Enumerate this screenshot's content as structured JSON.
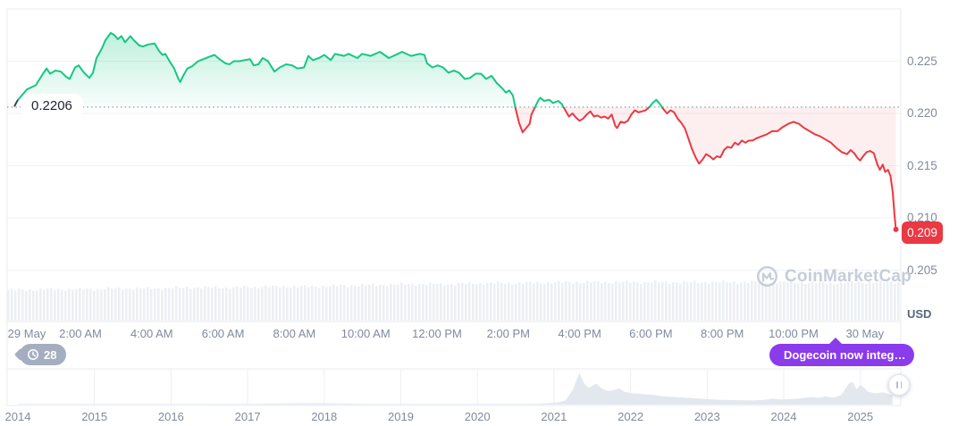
{
  "colors": {
    "up": "#16C784",
    "down": "#EA3943",
    "axis_text": "#808A9D",
    "grid": "#F0F2F6",
    "border": "#E8EBF1",
    "volume_bar": "#ECEFF3",
    "mini_fill": "#E3E8EF",
    "purple": "#8A3BEC",
    "history_badge_gray": "#A5AEC0",
    "watermark_gray": "#C5CDD9",
    "price_badge_red": "#EA3943"
  },
  "chart": {
    "baseline_label": "0.2206",
    "current_price_label": "0.209",
    "y_axis_unit": "USD",
    "y_axis_labels": [
      "0.225",
      "0.220",
      "0.215",
      "0.210",
      "0.205"
    ],
    "x_axis_labels": [
      "29 May",
      "2:00 AM",
      "4:00 AM",
      "6:00 AM",
      "8:00 AM",
      "10:00 AM",
      "12:00 PM",
      "2:00 PM",
      "4:00 PM",
      "6:00 PM",
      "8:00 PM",
      "10:00 PM",
      "30 May"
    ]
  },
  "history_badge": {
    "count": "28",
    "icon": "history-clock-icon"
  },
  "cta": {
    "label": "Dogecoin now integ…",
    "icon": "lightning-bolt-icon"
  },
  "watermark": {
    "text": "CoinMarketCap",
    "icon": "coinmarketcap-logo"
  },
  "timeline": {
    "year_labels": [
      "2014",
      "2015",
      "2016",
      "2017",
      "2018",
      "2019",
      "2020",
      "2021",
      "2022",
      "2023",
      "2024",
      "2025"
    ]
  },
  "chart_data": [
    {
      "type": "area",
      "title": "DOGE/USD intraday price, 29-30 May",
      "ylabel": "USD",
      "baseline": 0.2206,
      "current_price": 0.209,
      "y_ticks": [
        0.225,
        0.22,
        0.215,
        0.21,
        0.205
      ],
      "ylim": [
        0.2,
        0.23
      ],
      "x_ticks_hours": [
        0,
        2,
        4,
        6,
        8,
        10,
        12,
        14,
        16,
        18,
        20,
        22,
        24
      ],
      "grid": true,
      "series": [
        {
          "name": "price",
          "points": [
            [
              0.25,
              0.2213
            ],
            [
              0.5,
              0.2223
            ],
            [
              0.75,
              0.2227
            ],
            [
              0.95,
              0.2238
            ],
            [
              1.05,
              0.2243
            ],
            [
              1.15,
              0.2238
            ],
            [
              1.3,
              0.2241
            ],
            [
              1.45,
              0.224
            ],
            [
              1.6,
              0.2235
            ],
            [
              1.7,
              0.2233
            ],
            [
              1.85,
              0.2244
            ],
            [
              1.95,
              0.2246
            ],
            [
              2.1,
              0.2239
            ],
            [
              2.25,
              0.2234
            ],
            [
              2.35,
              0.2239
            ],
            [
              2.45,
              0.2253
            ],
            [
              2.6,
              0.2262
            ],
            [
              2.7,
              0.227
            ],
            [
              2.85,
              0.2277
            ],
            [
              2.95,
              0.2275
            ],
            [
              3.05,
              0.2271
            ],
            [
              3.15,
              0.2274
            ],
            [
              3.25,
              0.2268
            ],
            [
              3.4,
              0.2274
            ],
            [
              3.5,
              0.227
            ],
            [
              3.65,
              0.2265
            ],
            [
              3.75,
              0.2264
            ],
            [
              3.9,
              0.2266
            ],
            [
              4.08,
              0.2267
            ],
            [
              4.2,
              0.226
            ],
            [
              4.3,
              0.2256
            ],
            [
              4.38,
              0.2257
            ],
            [
              4.5,
              0.225
            ],
            [
              4.63,
              0.2243
            ],
            [
              4.75,
              0.2233
            ],
            [
              4.8,
              0.223
            ],
            [
              4.88,
              0.2236
            ],
            [
              5.0,
              0.2243
            ],
            [
              5.13,
              0.2245
            ],
            [
              5.3,
              0.225
            ],
            [
              5.45,
              0.2252
            ],
            [
              5.6,
              0.2254
            ],
            [
              5.76,
              0.2256
            ],
            [
              5.9,
              0.2252
            ],
            [
              6.06,
              0.2248
            ],
            [
              6.18,
              0.2247
            ],
            [
              6.3,
              0.225
            ],
            [
              6.46,
              0.225
            ],
            [
              6.6,
              0.2251
            ],
            [
              6.76,
              0.2252
            ],
            [
              6.86,
              0.2246
            ],
            [
              6.99,
              0.2247
            ],
            [
              7.11,
              0.2253
            ],
            [
              7.26,
              0.225
            ],
            [
              7.44,
              0.224
            ],
            [
              7.59,
              0.2244
            ],
            [
              7.77,
              0.2247
            ],
            [
              7.94,
              0.2246
            ],
            [
              8.09,
              0.2243
            ],
            [
              8.27,
              0.2244
            ],
            [
              8.39,
              0.2255
            ],
            [
              8.52,
              0.2251
            ],
            [
              8.69,
              0.2253
            ],
            [
              8.84,
              0.2256
            ],
            [
              9.02,
              0.2251
            ],
            [
              9.14,
              0.2257
            ],
            [
              9.39,
              0.2255
            ],
            [
              9.52,
              0.2257
            ],
            [
              9.77,
              0.2253
            ],
            [
              9.9,
              0.2257
            ],
            [
              10.14,
              0.2255
            ],
            [
              10.4,
              0.2259
            ],
            [
              10.65,
              0.2253
            ],
            [
              10.9,
              0.2257
            ],
            [
              11.02,
              0.2259
            ],
            [
              11.27,
              0.2255
            ],
            [
              11.52,
              0.2257
            ],
            [
              11.65,
              0.2256
            ],
            [
              11.72,
              0.2248
            ],
            [
              11.87,
              0.2244
            ],
            [
              12.02,
              0.2246
            ],
            [
              12.17,
              0.2244
            ],
            [
              12.32,
              0.2239
            ],
            [
              12.47,
              0.2241
            ],
            [
              12.62,
              0.2239
            ],
            [
              12.78,
              0.2233
            ],
            [
              12.93,
              0.2234
            ],
            [
              13.08,
              0.2238
            ],
            [
              13.23,
              0.2238
            ],
            [
              13.38,
              0.2233
            ],
            [
              13.53,
              0.2236
            ],
            [
              13.68,
              0.2229
            ],
            [
              13.83,
              0.2224
            ],
            [
              13.93,
              0.222
            ],
            [
              14.03,
              0.2222
            ],
            [
              14.13,
              0.2217
            ],
            [
              14.2,
              0.2205
            ],
            [
              14.3,
              0.2191
            ],
            [
              14.4,
              0.2182
            ],
            [
              14.5,
              0.2186
            ],
            [
              14.6,
              0.219
            ],
            [
              14.65,
              0.2199
            ],
            [
              14.75,
              0.2206
            ],
            [
              14.85,
              0.2213
            ],
            [
              14.9,
              0.2215
            ],
            [
              15.0,
              0.2212
            ],
            [
              15.15,
              0.2213
            ],
            [
              15.25,
              0.221
            ],
            [
              15.4,
              0.2212
            ],
            [
              15.5,
              0.2209
            ],
            [
              15.6,
              0.2203
            ],
            [
              15.7,
              0.2197
            ],
            [
              15.8,
              0.22
            ],
            [
              15.9,
              0.2196
            ],
            [
              16.0,
              0.2193
            ],
            [
              16.1,
              0.2195
            ],
            [
              16.2,
              0.2199
            ],
            [
              16.3,
              0.2202
            ],
            [
              16.4,
              0.2197
            ],
            [
              16.5,
              0.2198
            ],
            [
              16.6,
              0.2196
            ],
            [
              16.7,
              0.2197
            ],
            [
              16.8,
              0.2195
            ],
            [
              16.9,
              0.2199
            ],
            [
              17.0,
              0.2188
            ],
            [
              17.05,
              0.2186
            ],
            [
              17.15,
              0.2192
            ],
            [
              17.25,
              0.2191
            ],
            [
              17.35,
              0.2193
            ],
            [
              17.45,
              0.2199
            ],
            [
              17.55,
              0.2203
            ],
            [
              17.65,
              0.2201
            ],
            [
              17.75,
              0.2202
            ],
            [
              17.85,
              0.2203
            ],
            [
              17.95,
              0.2206
            ],
            [
              18.05,
              0.221
            ],
            [
              18.15,
              0.2213
            ],
            [
              18.25,
              0.2209
            ],
            [
              18.35,
              0.2204
            ],
            [
              18.45,
              0.22
            ],
            [
              18.55,
              0.2203
            ],
            [
              18.65,
              0.2201
            ],
            [
              18.75,
              0.2195
            ],
            [
              18.85,
              0.2191
            ],
            [
              18.95,
              0.2186
            ],
            [
              19.05,
              0.2176
            ],
            [
              19.15,
              0.2166
            ],
            [
              19.25,
              0.2158
            ],
            [
              19.35,
              0.2152
            ],
            [
              19.45,
              0.2156
            ],
            [
              19.55,
              0.2161
            ],
            [
              19.65,
              0.2159
            ],
            [
              19.75,
              0.2156
            ],
            [
              19.85,
              0.2159
            ],
            [
              19.95,
              0.2158
            ],
            [
              20.05,
              0.2165
            ],
            [
              20.15,
              0.2168
            ],
            [
              20.25,
              0.2167
            ],
            [
              20.35,
              0.2172
            ],
            [
              20.45,
              0.217
            ],
            [
              20.55,
              0.2174
            ],
            [
              20.65,
              0.2172
            ],
            [
              20.75,
              0.2174
            ],
            [
              20.85,
              0.2174
            ],
            [
              20.95,
              0.2176
            ],
            [
              21.1,
              0.2178
            ],
            [
              21.25,
              0.218
            ],
            [
              21.4,
              0.2183
            ],
            [
              21.55,
              0.2183
            ],
            [
              21.7,
              0.2187
            ],
            [
              21.85,
              0.219
            ],
            [
              22.0,
              0.2192
            ],
            [
              22.15,
              0.219
            ],
            [
              22.3,
              0.2186
            ],
            [
              22.45,
              0.2183
            ],
            [
              22.6,
              0.218
            ],
            [
              22.75,
              0.2178
            ],
            [
              22.9,
              0.2175
            ],
            [
              23.05,
              0.2172
            ],
            [
              23.2,
              0.2167
            ],
            [
              23.35,
              0.2163
            ],
            [
              23.5,
              0.2161
            ],
            [
              23.6,
              0.2165
            ],
            [
              23.7,
              0.2162
            ],
            [
              23.8,
              0.2157
            ],
            [
              23.87,
              0.2155
            ],
            [
              23.95,
              0.2159
            ],
            [
              24.05,
              0.2163
            ],
            [
              24.15,
              0.2164
            ],
            [
              24.25,
              0.2162
            ],
            [
              24.35,
              0.2151
            ],
            [
              24.42,
              0.2146
            ],
            [
              24.5,
              0.2151
            ],
            [
              24.57,
              0.2144
            ],
            [
              24.65,
              0.2146
            ],
            [
              24.72,
              0.214
            ],
            [
              24.78,
              0.2125
            ],
            [
              24.83,
              0.2103
            ],
            [
              24.87,
              0.2089
            ]
          ]
        }
      ]
    },
    {
      "type": "bar",
      "title": "Intraday volume profile (relative bar heights)",
      "values": [
        34,
        35,
        35,
        36,
        36,
        37,
        37,
        38,
        38,
        39,
        40,
        41,
        41,
        42,
        42,
        43,
        43,
        43,
        43,
        43,
        43,
        43,
        42,
        43,
        43
      ]
    },
    {
      "type": "area",
      "title": "All-time price overview 2014-2025 (normalized 0-1)",
      "x_ticks": [
        2014,
        2015,
        2016,
        2017,
        2018,
        2019,
        2020,
        2021,
        2022,
        2023,
        2024,
        2025
      ],
      "points": [
        [
          2014.0,
          0.015
        ],
        [
          2015.0,
          0.015
        ],
        [
          2016.0,
          0.015
        ],
        [
          2017.0,
          0.02
        ],
        [
          2017.9,
          0.04
        ],
        [
          2018.1,
          0.035
        ],
        [
          2018.5,
          0.02
        ],
        [
          2019.0,
          0.02
        ],
        [
          2020.0,
          0.02
        ],
        [
          2020.8,
          0.025
        ],
        [
          2021.05,
          0.06
        ],
        [
          2021.15,
          0.12
        ],
        [
          2021.25,
          0.45
        ],
        [
          2021.33,
          0.93
        ],
        [
          2021.4,
          0.6
        ],
        [
          2021.45,
          0.5
        ],
        [
          2021.5,
          0.55
        ],
        [
          2021.55,
          0.62
        ],
        [
          2021.62,
          0.48
        ],
        [
          2021.7,
          0.4
        ],
        [
          2021.78,
          0.42
        ],
        [
          2021.85,
          0.48
        ],
        [
          2021.92,
          0.38
        ],
        [
          2022.0,
          0.34
        ],
        [
          2022.1,
          0.32
        ],
        [
          2022.2,
          0.3
        ],
        [
          2022.3,
          0.29
        ],
        [
          2022.4,
          0.25
        ],
        [
          2022.5,
          0.23
        ],
        [
          2022.65,
          0.21
        ],
        [
          2022.8,
          0.19
        ],
        [
          2023.0,
          0.16
        ],
        [
          2023.2,
          0.14
        ],
        [
          2023.4,
          0.13
        ],
        [
          2023.6,
          0.12
        ],
        [
          2023.75,
          0.14
        ],
        [
          2023.85,
          0.17
        ],
        [
          2023.95,
          0.15
        ],
        [
          2024.1,
          0.16
        ],
        [
          2024.2,
          0.18
        ],
        [
          2024.35,
          0.22
        ],
        [
          2024.45,
          0.2
        ],
        [
          2024.55,
          0.24
        ],
        [
          2024.65,
          0.2
        ],
        [
          2024.75,
          0.28
        ],
        [
          2024.85,
          0.62
        ],
        [
          2024.9,
          0.67
        ],
        [
          2024.95,
          0.45
        ],
        [
          2025.0,
          0.58
        ],
        [
          2025.05,
          0.5
        ],
        [
          2025.1,
          0.38
        ],
        [
          2025.2,
          0.33
        ],
        [
          2025.3,
          0.36
        ],
        [
          2025.38,
          0.3
        ],
        [
          2025.42,
          0.28
        ]
      ]
    }
  ]
}
